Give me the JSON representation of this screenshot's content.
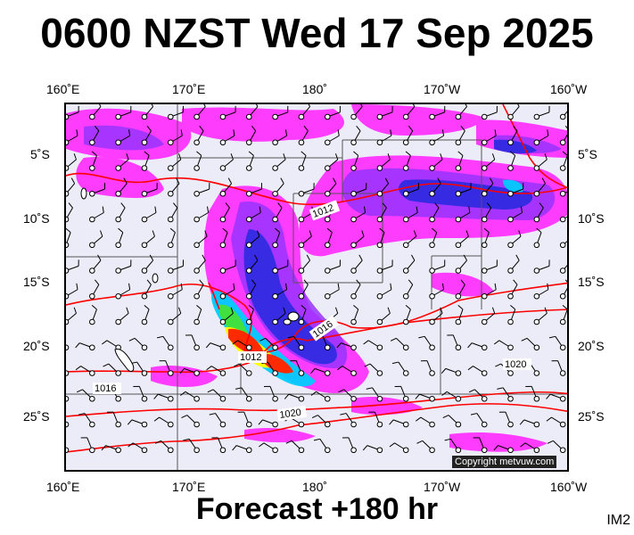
{
  "title": "0600 NZST Wed 17 Sep 2025",
  "footer": "Forecast +180 hr",
  "corner_code": "IM2",
  "copyright": "Copyright metvuw.com",
  "axes": {
    "lon_labels": [
      "160˚E",
      "170˚E",
      "180˚",
      "170˚W",
      "160˚W"
    ],
    "lat_labels": [
      "5˚S",
      "10˚S",
      "15˚S",
      "20˚S",
      "25˚S"
    ]
  },
  "isobars": [
    {
      "label": "1012"
    },
    {
      "label": "1016"
    },
    {
      "label": "1012"
    },
    {
      "label": "1016"
    },
    {
      "label": "1020"
    },
    {
      "label": "1020"
    }
  ],
  "colors": {
    "ocean": "#ececf8",
    "rain_light": "#ff00ff",
    "rain_med": "#a040ff",
    "rain_heavy": "#2020e0",
    "rain_very_heavy": "#00c0ff",
    "rain_extreme_1": "#40e040",
    "rain_extreme_2": "#ffff00",
    "rain_extreme_3": "#ff3000",
    "isobar": "#ff0000",
    "wind": "#000000"
  }
}
